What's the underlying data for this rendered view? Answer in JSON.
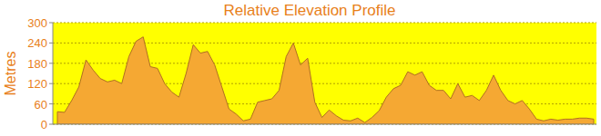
{
  "chart_data": {
    "type": "area",
    "title": "Relative Elevation Profile",
    "y_label": "Metres",
    "categories": [
      null,
      null,
      null,
      null,
      null,
      null,
      null,
      null,
      null,
      null,
      null,
      null,
      null,
      null,
      null,
      null,
      null,
      null,
      null,
      null,
      null,
      null,
      null,
      null,
      null,
      null,
      null,
      null,
      null,
      null,
      null,
      null,
      null,
      null,
      null,
      null,
      null,
      null,
      null,
      null,
      null,
      null,
      null,
      null,
      null,
      null,
      null,
      null,
      null,
      null,
      null,
      null,
      null,
      null,
      null,
      null,
      null,
      null,
      null,
      null,
      null,
      null,
      null,
      null,
      null,
      null,
      null,
      null,
      null,
      null,
      null,
      null,
      null,
      null,
      null,
      null
    ],
    "values": [
      37,
      35,
      70,
      110,
      190,
      160,
      135,
      125,
      130,
      120,
      200,
      245,
      258,
      170,
      165,
      120,
      95,
      80,
      150,
      235,
      210,
      215,
      175,
      110,
      45,
      30,
      10,
      15,
      65,
      70,
      75,
      100,
      200,
      240,
      175,
      195,
      65,
      20,
      42,
      25,
      12,
      10,
      18,
      5,
      20,
      40,
      80,
      105,
      115,
      155,
      145,
      155,
      115,
      100,
      100,
      75,
      120,
      80,
      85,
      70,
      100,
      145,
      100,
      70,
      60,
      70,
      45,
      15,
      10,
      15,
      12,
      15,
      15,
      18,
      18,
      15
    ],
    "color": "#f5a833",
    "ylim": [
      0,
      300
    ],
    "yticks": [
      0,
      60,
      120,
      180,
      240,
      300
    ],
    "grid": true,
    "tick_labels": "y"
  }
}
